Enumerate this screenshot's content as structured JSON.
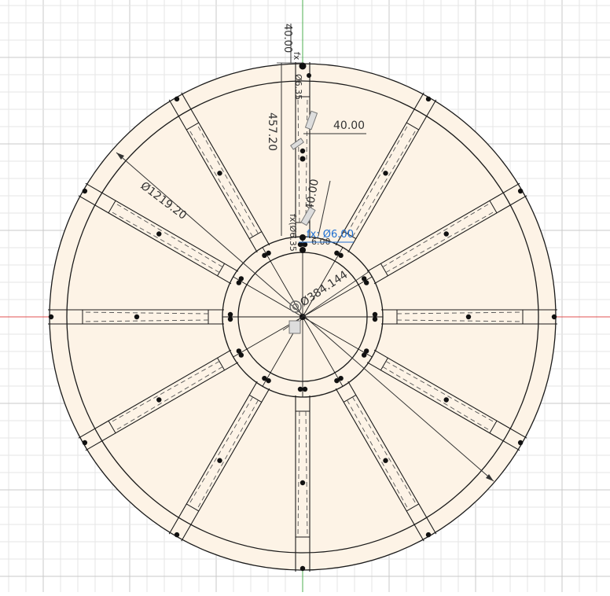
{
  "sketch": {
    "colors": {
      "background": "#ffffff",
      "grid_minor": "#e6e6e6",
      "grid_major": "#c9c9c9",
      "profile_fill": "#fdf3e6",
      "sketch_line": "#1a1a1a",
      "construction_line": "#555555",
      "x_axis": "#e05050",
      "y_axis": "#4caf50",
      "active_dimension": "#1f6fd1"
    },
    "spoke_count": 12,
    "dimensions": {
      "top_vertical": "40.00",
      "horizontal_width": "40.00",
      "spoke_length": "457.20",
      "rim_diameter": "Ø1219.20",
      "spoke_angle_value": "40.00",
      "hub_diameter": "Ø384.144",
      "hole_diameter": "fx: Ø6.00",
      "small_diameter_top": "Ø6.35",
      "fx_label_top": "fx",
      "fx_label_mid": "fx(Ø6.35",
      "small_dim": "6.00"
    }
  }
}
